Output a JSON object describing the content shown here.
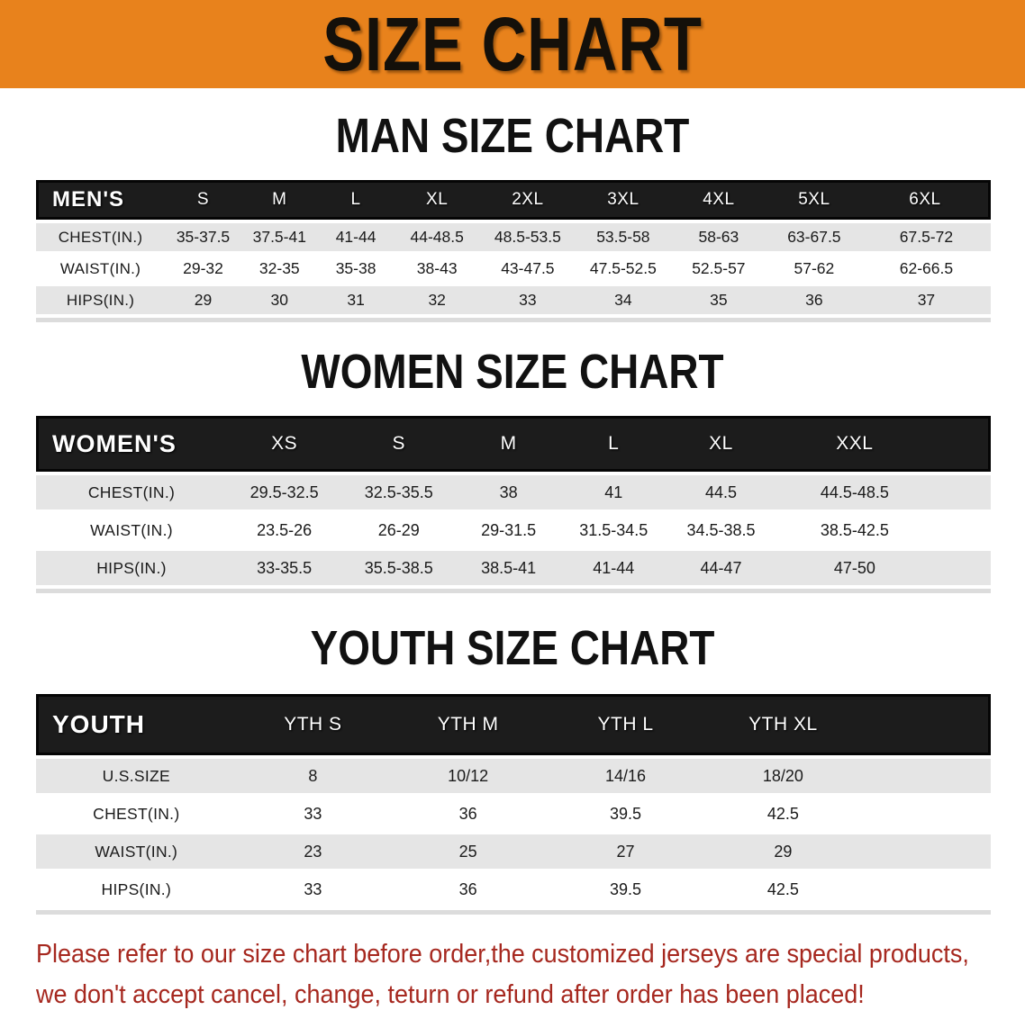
{
  "banner": {
    "title": "SIZE CHART"
  },
  "sections": [
    {
      "heading": "MAN SIZE CHART",
      "table": {
        "label": "MEN'S",
        "columns": [
          "S",
          "M",
          "L",
          "XL",
          "2XL",
          "3XL",
          "4XL",
          "5XL",
          "6XL"
        ],
        "rows": [
          {
            "label": "CHEST(IN.)",
            "values": [
              "35-37.5",
              "37.5-41",
              "41-44",
              "44-48.5",
              "48.5-53.5",
              "53.5-58",
              "58-63",
              "63-67.5",
              "67.5-72"
            ]
          },
          {
            "label": "WAIST(IN.)",
            "values": [
              "29-32",
              "32-35",
              "35-38",
              "38-43",
              "43-47.5",
              "47.5-52.5",
              "52.5-57",
              "57-62",
              "62-66.5"
            ]
          },
          {
            "label": "HIPS(IN.)",
            "values": [
              "29",
              "30",
              "31",
              "32",
              "33",
              "34",
              "35",
              "36",
              "37"
            ]
          }
        ]
      }
    },
    {
      "heading": "WOMEN SIZE CHART",
      "table": {
        "label": "WOMEN'S",
        "columns": [
          "XS",
          "S",
          "M",
          "L",
          "XL",
          "XXL"
        ],
        "rows": [
          {
            "label": "CHEST(IN.)",
            "values": [
              "29.5-32.5",
              "32.5-35.5",
              "38",
              "41",
              "44.5",
              "44.5-48.5"
            ]
          },
          {
            "label": "WAIST(IN.)",
            "values": [
              "23.5-26",
              "26-29",
              "29-31.5",
              "31.5-34.5",
              "34.5-38.5",
              "38.5-42.5"
            ]
          },
          {
            "label": "HIPS(IN.)",
            "values": [
              "33-35.5",
              "35.5-38.5",
              "38.5-41",
              "41-44",
              "44-47",
              "47-50"
            ]
          }
        ]
      }
    },
    {
      "heading": "YOUTH SIZE CHART",
      "table": {
        "label": "YOUTH",
        "columns": [
          "YTH S",
          "YTH M",
          "YTH L",
          "YTH XL"
        ],
        "rows": [
          {
            "label": "U.S.SIZE",
            "values": [
              "8",
              "10/12",
              "14/16",
              "18/20"
            ]
          },
          {
            "label": "CHEST(IN.)",
            "values": [
              "33",
              "36",
              "39.5",
              "42.5"
            ]
          },
          {
            "label": "WAIST(IN.)",
            "values": [
              "23",
              "25",
              "27",
              "29"
            ]
          },
          {
            "label": "HIPS(IN.)",
            "values": [
              "33",
              "36",
              "39.5",
              "42.5"
            ]
          }
        ]
      }
    }
  ],
  "footer": {
    "line1": "Please refer to our size chart before order,the customized jerseys are special products,",
    "line2": "we don't accept cancel, change, teturn or refund after order has been placed!"
  },
  "colors": {
    "banner_orange": "#E8821C",
    "table_header_black": "#1C1C1C",
    "stripe_gray": "#E5E5E5",
    "note_red": "#A6281F"
  }
}
